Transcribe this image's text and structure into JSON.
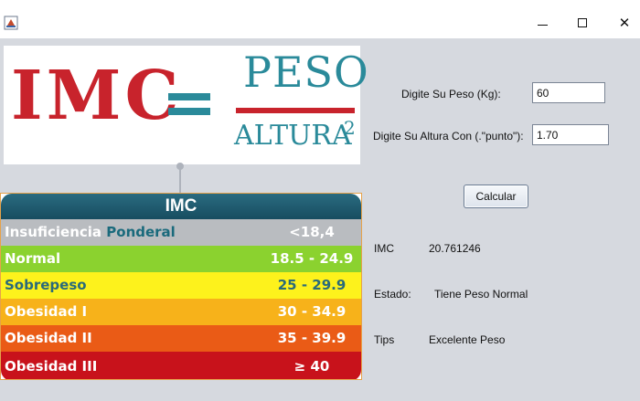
{
  "window": {
    "icon": "java-app-icon",
    "minimize_glyph": "",
    "close_glyph": "✕"
  },
  "formula_image": {
    "left": "IMC",
    "equals": "=",
    "numerator": "PESO",
    "denominator": "ALTURA",
    "exponent": "2",
    "colors": {
      "red": "#c8232c",
      "teal": "#2a8a9a"
    }
  },
  "imc_table": {
    "title": "IMC",
    "rows": [
      {
        "label": "Insuficiencia",
        "label_accent": "Ponderal",
        "range": "<18,4",
        "color": "#b9bcc0"
      },
      {
        "label": "Normal",
        "range": "18.5 - 24.9",
        "color": "#8bd22f"
      },
      {
        "label": "Sobrepeso",
        "range": "25 - 29.9",
        "color": "#fdf21c"
      },
      {
        "label": "Obesidad I",
        "range": "30 - 34.9",
        "color": "#f7b21a"
      },
      {
        "label": "Obesidad II",
        "range": "35 - 39.9",
        "color": "#ea5b16"
      },
      {
        "label": "Obesidad III",
        "range": "≥ 40",
        "color": "#c8121b"
      }
    ]
  },
  "form": {
    "weight_label": "Digite Su Peso (Kg):",
    "weight_value": "60",
    "height_label": "Digite Su Altura Con (.\"punto\"):",
    "height_value": "1.70",
    "calculate_label": "Calcular"
  },
  "results": {
    "imc_label": "IMC",
    "imc_value": "20.761246",
    "estado_label": "Estado:",
    "estado_value": "Tiene Peso Normal",
    "tips_label": "Tips",
    "tips_value": "Excelente Peso"
  }
}
